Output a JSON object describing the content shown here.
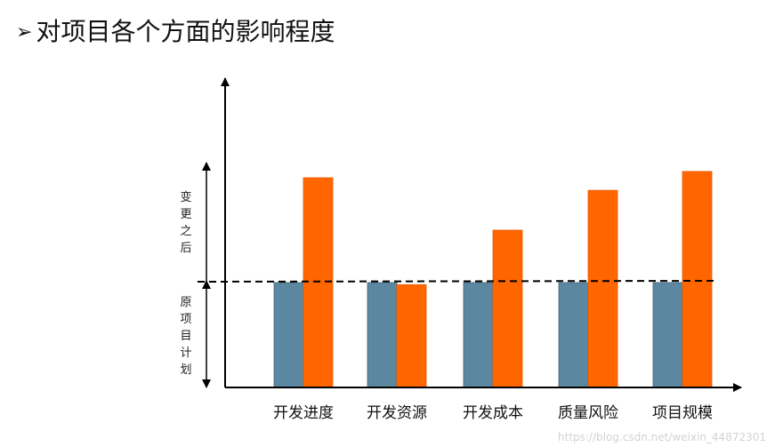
{
  "title": "对项目各个方面的影响程度",
  "bullet_glyph": "➢",
  "side_labels": {
    "upper": "变更之后",
    "lower": "原项目计划"
  },
  "watermark": "https://blog.csdn.net/weixin_44872301",
  "colors": {
    "baseline_bar": "#5b87a0",
    "after_bar": "#ff6600",
    "axis": "#000000"
  },
  "chart_data": {
    "type": "bar",
    "categories": [
      "开发进度",
      "开发资源",
      "开发成本",
      "质量风险",
      "项目规模"
    ],
    "series": [
      {
        "values": [
          1.0,
          1.0,
          1.0,
          1.0,
          1.0
        ]
      },
      {
        "values": [
          2.0,
          0.98,
          1.5,
          1.88,
          2.06
        ]
      }
    ],
    "reference_line": 1.0,
    "ylim": [
      0,
      2.7
    ],
    "xlabel": "",
    "ylabel": "",
    "grid": false,
    "legend": "none"
  }
}
